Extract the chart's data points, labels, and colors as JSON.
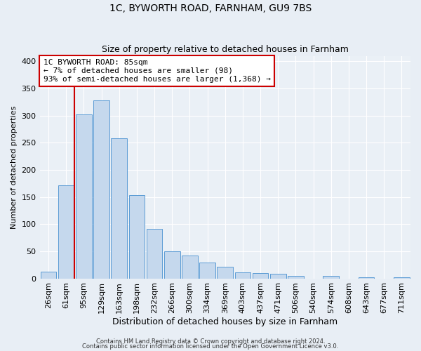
{
  "title": "1C, BYWORTH ROAD, FARNHAM, GU9 7BS",
  "subtitle": "Size of property relative to detached houses in Farnham",
  "xlabel": "Distribution of detached houses by size in Farnham",
  "ylabel": "Number of detached properties",
  "bar_labels": [
    "26sqm",
    "61sqm",
    "95sqm",
    "129sqm",
    "163sqm",
    "198sqm",
    "232sqm",
    "266sqm",
    "300sqm",
    "334sqm",
    "369sqm",
    "403sqm",
    "437sqm",
    "471sqm",
    "506sqm",
    "540sqm",
    "574sqm",
    "608sqm",
    "643sqm",
    "677sqm",
    "711sqm"
  ],
  "bar_values": [
    12,
    172,
    302,
    328,
    258,
    153,
    91,
    50,
    42,
    29,
    21,
    11,
    10,
    9,
    4,
    0,
    4,
    0,
    2,
    0,
    2
  ],
  "bar_color": "#c5d8ed",
  "bar_edge_color": "#5b9bd5",
  "vline_color": "#cc0000",
  "annotation_title": "1C BYWORTH ROAD: 85sqm",
  "annotation_line1": "← 7% of detached houses are smaller (98)",
  "annotation_line2": "93% of semi-detached houses are larger (1,368) →",
  "annotation_box_color": "#ffffff",
  "annotation_border_color": "#cc0000",
  "ylim": [
    0,
    410
  ],
  "yticks": [
    0,
    50,
    100,
    150,
    200,
    250,
    300,
    350,
    400
  ],
  "bg_color": "#e8eef5",
  "plot_bg_color": "#eaf0f6",
  "footer1": "Contains HM Land Registry data © Crown copyright and database right 2024.",
  "footer2": "Contains public sector information licensed under the Open Government Licence v3.0.",
  "title_fontsize": 10,
  "subtitle_fontsize": 9,
  "xlabel_fontsize": 9,
  "ylabel_fontsize": 8,
  "tick_fontsize": 8,
  "annot_fontsize": 8
}
